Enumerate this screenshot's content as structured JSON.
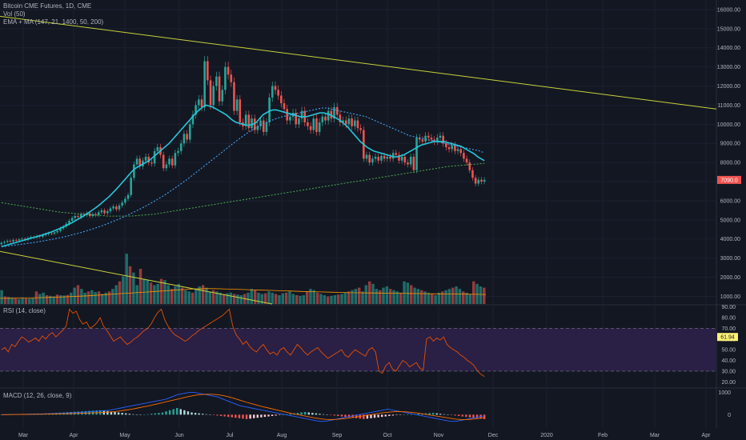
{
  "legend": {
    "main": "Bitcoin CME Futures, 1D, CME",
    "vol": "Vol (50)",
    "ma": "EMA + MA (147, 21, 1400, 50, 200)",
    "rsi": "RSI (14, close)",
    "macd": "MACD (12, 26, close, 9)"
  },
  "price_badge": "7090.0",
  "rsi_badge": "61.94",
  "colors": {
    "background": "#131722",
    "up": "#26a69a",
    "down": "#ef5350",
    "ema21": "#26c6da",
    "ma50": "#42a5f5",
    "ma200": "#4caf50",
    "trendline": "#c8d23a",
    "rsi_band": "#2a1f45",
    "rsi_line": "#e65100",
    "macd_line": "#2962ff",
    "signal_line": "#ff6d00"
  },
  "chart_data": [
    {
      "type": "candlestick",
      "title": "Bitcoin CME Futures, 1D, CME",
      "x_ticks": [
        "Mar",
        "Apr",
        "May",
        "Jun",
        "Jul",
        "Aug",
        "Sep",
        "Oct",
        "Nov",
        "Dec",
        "2020",
        "Feb",
        "Mar",
        "Apr"
      ],
      "y_ticks": [
        1000,
        2000,
        3000,
        4000,
        5000,
        6000,
        7000,
        8000,
        9000,
        10000,
        11000,
        12000,
        13000,
        14000,
        15000,
        16000
      ],
      "ylim": [
        600,
        16500
      ],
      "last_price": 7090,
      "closes": [
        3800,
        3850,
        3900,
        3870,
        3950,
        3920,
        3980,
        4010,
        3960,
        4050,
        4100,
        4080,
        4150,
        4120,
        4200,
        4250,
        4300,
        4280,
        4350,
        4420,
        4550,
        4650,
        4800,
        4950,
        5100,
        5200,
        5150,
        5300,
        5250,
        5350,
        5200,
        5300,
        5250,
        5400,
        5500,
        5350,
        5450,
        5600,
        5700,
        5550,
        5750,
        5900,
        6100,
        6300,
        7200,
        7900,
        8200,
        7800,
        8100,
        8300,
        8000,
        7950,
        8600,
        8800,
        8400,
        7700,
        7900,
        8200,
        7850,
        8500,
        8600,
        9000,
        9500,
        9200,
        10000,
        10500,
        11000,
        11300,
        10900,
        13300,
        12300,
        11000,
        12000,
        12500,
        11200,
        11800,
        13000,
        12600,
        12200,
        10700,
        11300,
        10100,
        9900,
        10500,
        9800,
        10300,
        9700,
        9900,
        10200,
        9600,
        10100,
        11400,
        12000,
        11800,
        11500,
        11100,
        10800,
        10200,
        10400,
        10600,
        10000,
        10300,
        10700,
        10100,
        9900,
        9700,
        10300,
        9600,
        10100,
        10400,
        10200,
        10700,
        10300,
        10900,
        10500,
        10100,
        10200,
        10000,
        10300,
        9900,
        10200,
        9800,
        9700,
        8200,
        8400,
        8000,
        8200,
        8300,
        8100,
        8350,
        8200,
        8300,
        8200,
        8500,
        8400,
        8100,
        8300,
        8000,
        7900,
        8300,
        7600,
        9300,
        9200,
        9100,
        9400,
        9300,
        9200,
        9100,
        9300,
        9400,
        9000,
        8800,
        8700,
        8900,
        8600,
        8700,
        8500,
        8200,
        8000,
        7600,
        7200,
        6900,
        7100,
        7000,
        7090
      ],
      "ema21": [
        3600,
        3650,
        3700,
        3750,
        3800,
        3850,
        3900,
        3950,
        4000,
        4050,
        4100,
        4150,
        4200,
        4260,
        4320,
        4380,
        4450,
        4520,
        4600,
        4680,
        4760,
        4850,
        4950,
        5050,
        5150,
        5260,
        5380,
        5500,
        5620,
        5750,
        5900,
        6050,
        6200,
        6380,
        6560,
        6750,
        6950,
        7150,
        7350,
        7550,
        7700,
        7800,
        7900,
        8000,
        8100,
        8250,
        8400,
        8550,
        8700,
        8850,
        9000,
        9200,
        9400,
        9600,
        9800,
        10000,
        10200,
        10400,
        10600,
        10750,
        10900,
        11000,
        10950,
        10900,
        10800,
        10700,
        10600,
        10500,
        10350,
        10200,
        10100,
        10050,
        10000,
        9950,
        9950,
        10000,
        10100,
        10300,
        10500,
        10600,
        10700,
        10750,
        10750,
        10700,
        10650,
        10600,
        10550,
        10500,
        10450,
        10400,
        10400,
        10400,
        10450,
        10500,
        10550,
        10600,
        10600,
        10550,
        10500,
        10400,
        10300,
        10200,
        10050,
        9900,
        9700,
        9500,
        9300,
        9100,
        8950,
        8800,
        8700,
        8600,
        8550,
        8500,
        8450,
        8400,
        8350,
        8300,
        8300,
        8350,
        8400,
        8500,
        8600,
        8700,
        8800,
        8900,
        8950,
        9000,
        9050,
        9100,
        9100,
        9100,
        9100,
        9050,
        9000,
        8950,
        8900,
        8850,
        8750,
        8650,
        8550,
        8450,
        8300,
        8200,
        8100
      ],
      "ma50": [
        3600,
        3620,
        3650,
        3680,
        3710,
        3740,
        3770,
        3800,
        3840,
        3880,
        3920,
        3960,
        4000,
        4050,
        4100,
        4150,
        4210,
        4270,
        4330,
        4400,
        4470,
        4540,
        4620,
        4700,
        4790,
        4880,
        4970,
        5070,
        5170,
        5280,
        5390,
        5500,
        5620,
        5740,
        5870,
        6000,
        6140,
        6280,
        6430,
        6580,
        6740,
        6900,
        7070,
        7240,
        7420,
        7600,
        7780,
        7960,
        8140,
        8320,
        8500,
        8680,
        8860,
        9040,
        9210,
        9380,
        9540,
        9690,
        9830,
        9950,
        10060,
        10160,
        10250,
        10330,
        10400,
        10450,
        10500,
        10550,
        10600,
        10650,
        10700,
        10750,
        10800,
        10850,
        10850,
        10800,
        10750,
        10700,
        10650,
        10600,
        10550,
        10500,
        10450,
        10400,
        10300,
        10200,
        10100,
        10000,
        9900,
        9800,
        9700,
        9600,
        9500,
        9400,
        9350,
        9300,
        9250,
        9200,
        9150,
        9100,
        9050,
        9000,
        8950,
        8900,
        8850,
        8800,
        8750,
        8700,
        8650,
        8600,
        8500
      ],
      "ma200": [
        5900,
        5800,
        5700,
        5600,
        5500,
        5400,
        5350,
        5300,
        5250,
        5200,
        5200,
        5200,
        5250,
        5300,
        5400,
        5500,
        5600,
        5700,
        5800,
        5900,
        6000,
        6100,
        6200,
        6300,
        6400,
        6500,
        6600,
        6700,
        6800,
        6900,
        7000,
        7100,
        7200,
        7300,
        7400,
        7500,
        7600,
        7700,
        7800,
        7850,
        7900,
        7950
      ]
    },
    {
      "type": "bar",
      "title": "Vol (50)",
      "y_ticks": [
        1000,
        2000,
        3000,
        4000,
        5000,
        6000,
        7000,
        8000,
        9000,
        10000,
        11000,
        12000,
        13000,
        14000,
        15000,
        16000
      ],
      "values": [
        1100,
        600,
        550,
        500,
        450,
        400,
        520,
        480,
        430,
        460,
        1000,
        800,
        900,
        700,
        650,
        600,
        750,
        700,
        680,
        720,
        900,
        1300,
        1500,
        1200,
        900,
        1000,
        1100,
        950,
        1000,
        800,
        900,
        1000,
        1200,
        1500,
        1800,
        2200,
        4000,
        3000,
        2500,
        1500,
        2800,
        2000,
        1900,
        1700,
        1500,
        1600,
        2000,
        1900,
        1500,
        1200,
        1400,
        1600,
        1300,
        1100,
        1000,
        900,
        1200,
        1400,
        1500,
        1300,
        1000,
        1100,
        1000,
        900,
        800,
        850,
        900,
        800,
        750,
        700,
        800,
        900,
        1200,
        1100,
        900,
        800,
        850,
        1000,
        900,
        800,
        700,
        850,
        900,
        1000,
        800,
        700,
        650,
        700,
        1000,
        1200,
        1100,
        900,
        800,
        700,
        600,
        650,
        700,
        750,
        800,
        900,
        1000,
        1100,
        1200,
        1300,
        1000,
        1500,
        1800,
        1600,
        1200,
        1100,
        1300,
        1400,
        1200,
        1100,
        1000,
        900,
        1800,
        1700,
        1500,
        1300,
        1200,
        1100,
        1000,
        900,
        800,
        700,
        900,
        1000,
        1100,
        1200,
        1300,
        1400,
        1200,
        1000,
        900,
        800,
        1800,
        1600,
        1400,
        1300
      ],
      "vol_ma50": [
        450,
        460,
        470,
        480,
        500,
        520,
        550,
        580,
        620,
        650,
        700,
        750,
        800,
        850,
        900,
        950,
        1000,
        1050,
        1100,
        1150,
        1200,
        1220,
        1220,
        1200,
        1180,
        1150,
        1120,
        1100,
        1080,
        1050,
        1030,
        1000,
        980,
        960,
        940,
        920,
        900,
        890,
        880,
        870,
        860,
        850,
        840,
        830,
        820,
        810,
        800,
        790,
        780,
        770,
        760
      ]
    },
    {
      "type": "line",
      "title": "RSI (14, close)",
      "y_ticks": [
        20,
        30,
        40,
        50,
        60,
        70,
        80,
        90
      ],
      "ylim": [
        15,
        92
      ],
      "bands": [
        30,
        70
      ],
      "last_value": 61.94,
      "values": [
        50,
        52,
        48,
        55,
        53,
        58,
        62,
        60,
        57,
        59,
        61,
        58,
        63,
        60,
        64,
        66,
        62,
        65,
        68,
        72,
        88,
        84,
        86,
        78,
        74,
        76,
        70,
        72,
        75,
        80,
        72,
        68,
        63,
        58,
        60,
        62,
        58,
        55,
        57,
        60,
        62,
        65,
        68,
        70,
        74,
        80,
        85,
        88,
        78,
        72,
        67,
        64,
        62,
        60,
        58,
        60,
        63,
        65,
        68,
        70,
        72,
        74,
        76,
        78,
        80,
        82,
        85,
        88,
        72,
        64,
        60,
        55,
        58,
        53,
        50,
        48,
        52,
        55,
        50,
        46,
        48,
        45,
        50,
        52,
        48,
        45,
        50,
        55,
        52,
        48,
        45,
        48,
        50,
        52,
        48,
        45,
        42,
        44,
        46,
        48,
        50,
        45,
        43,
        47,
        50,
        48,
        46,
        44,
        50,
        52,
        48,
        30,
        28,
        35,
        38,
        32,
        30,
        35,
        40,
        38,
        34,
        36,
        38,
        33,
        31,
        60,
        62,
        58,
        61,
        59,
        62,
        55,
        52,
        50,
        48,
        45,
        43,
        40,
        38,
        35,
        30,
        27,
        25
      ]
    },
    {
      "type": "bar",
      "title": "MACD (12, 26, close, 9)",
      "y_ticks": [
        0,
        1000
      ],
      "ylim": [
        -600,
        1200
      ],
      "histogram": [
        10,
        12,
        15,
        18,
        20,
        22,
        25,
        28,
        30,
        35,
        40,
        45,
        50,
        60,
        70,
        80,
        90,
        100,
        110,
        120,
        130,
        140,
        150,
        160,
        170,
        180,
        190,
        200,
        180,
        160,
        140,
        120,
        100,
        80,
        60,
        40,
        20,
        10,
        5,
        10,
        20,
        40,
        60,
        80,
        100,
        150,
        200,
        250,
        300,
        250,
        200,
        150,
        100,
        80,
        60,
        40,
        20,
        0,
        -20,
        -40,
        -60,
        -80,
        -100,
        -120,
        -140,
        -160,
        -180,
        -200,
        -180,
        -160,
        -140,
        -120,
        -100,
        -80,
        -60,
        -40,
        -20,
        0,
        20,
        40,
        60,
        80,
        100,
        120,
        100,
        80,
        60,
        40,
        20,
        0,
        -20,
        -40,
        -60,
        -80,
        -100,
        -120,
        -140,
        -160,
        -180,
        -200,
        -180,
        -160,
        -140,
        -120,
        -100,
        -80,
        -60,
        -40,
        -20,
        -10,
        0,
        10,
        20,
        30,
        40,
        50,
        60,
        70,
        80,
        60,
        40,
        20,
        0,
        -20,
        -40,
        -60,
        -80,
        -100,
        -120,
        -140,
        -160,
        -180,
        -200
      ],
      "macd_line": [
        0,
        5,
        10,
        15,
        20,
        25,
        30,
        35,
        40,
        50,
        60,
        70,
        80,
        90,
        100,
        120,
        140,
        160,
        180,
        200,
        250,
        300,
        350,
        400,
        450,
        500,
        550,
        600,
        650,
        700,
        800,
        900,
        950,
        1000,
        1000,
        950,
        900,
        850,
        800,
        700,
        600,
        500,
        400,
        350,
        300,
        250,
        200,
        150,
        100,
        50,
        0,
        -50,
        -100,
        -150,
        -200,
        -250,
        -300,
        -300,
        -250,
        -200,
        -150,
        -100,
        -50,
        0,
        50,
        100,
        150,
        200,
        250,
        200,
        150,
        100,
        50,
        0,
        -50,
        -100,
        -150,
        -200,
        -250,
        -300,
        -300,
        -250,
        -200,
        -150,
        -100,
        -50
      ],
      "signal_line": [
        0,
        3,
        6,
        9,
        12,
        15,
        18,
        22,
        26,
        30,
        36,
        42,
        48,
        55,
        62,
        70,
        80,
        92,
        105,
        120,
        140,
        170,
        210,
        250,
        300,
        350,
        400,
        460,
        520,
        580,
        640,
        700,
        760,
        820,
        870,
        900,
        920,
        920,
        900,
        860,
        800,
        730,
        650,
        570,
        500,
        430,
        360,
        300,
        240,
        180,
        120,
        60,
        10,
        -40,
        -90,
        -140,
        -180,
        -210,
        -220,
        -210,
        -190,
        -160,
        -120,
        -80,
        -40,
        0,
        40,
        80,
        110,
        130,
        140,
        130,
        110,
        80,
        40,
        0,
        -40,
        -80,
        -120,
        -160,
        -200,
        -220,
        -220,
        -200,
        -170,
        -130
      ]
    }
  ]
}
